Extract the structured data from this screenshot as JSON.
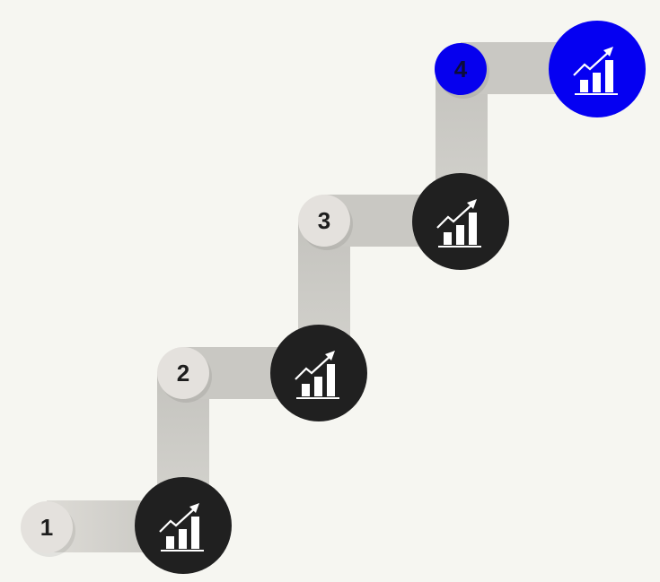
{
  "steps": [
    {
      "number": "1",
      "icon": "growth-chart-icon",
      "highlighted": false
    },
    {
      "number": "2",
      "icon": "growth-chart-icon",
      "highlighted": false
    },
    {
      "number": "3",
      "icon": "growth-chart-icon",
      "highlighted": false
    },
    {
      "number": "4",
      "icon": "growth-chart-icon",
      "highlighted": true
    }
  ],
  "colors": {
    "background": "#f6f6f1",
    "connector": "#c9c8c3",
    "step_circle": "#e4e1dd",
    "icon_circle": "#202020",
    "accent": "#0500f2"
  }
}
